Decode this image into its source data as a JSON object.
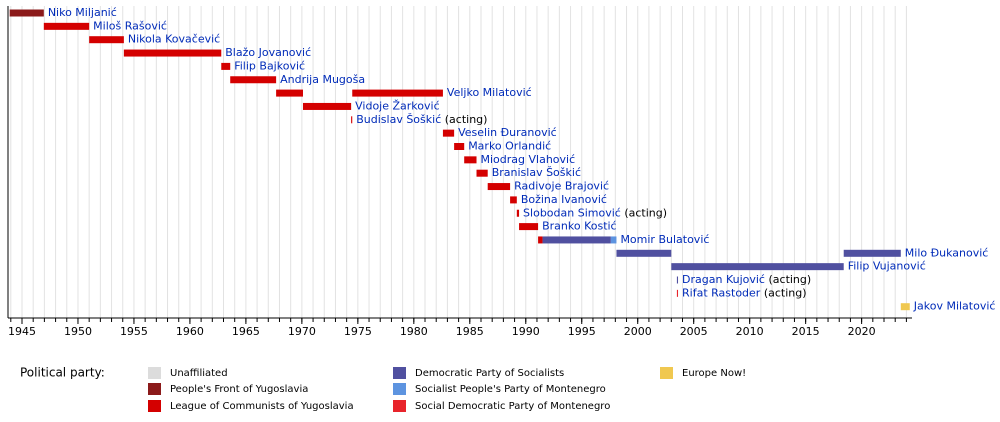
{
  "chart_data": {
    "type": "timeline",
    "xlim": [
      1943.75,
      2024.5
    ],
    "xticks": [
      1945,
      1950,
      1955,
      1960,
      1965,
      1970,
      1975,
      1980,
      1985,
      1990,
      1995,
      2000,
      2005,
      2010,
      2015,
      2020
    ],
    "minor_xticks": [
      1944,
      1945,
      1946,
      1947,
      1948,
      1949,
      1950,
      1951,
      1952,
      1953,
      1954,
      1955,
      1956,
      1957,
      1958,
      1959,
      1960,
      1961,
      1962,
      1963,
      1964,
      1965,
      1966,
      1967,
      1968,
      1969,
      1970,
      1971,
      1972,
      1973,
      1974,
      1975,
      1976,
      1977,
      1978,
      1979,
      1980,
      1981,
      1982,
      1983,
      1984,
      1985,
      1986,
      1987,
      1988,
      1989,
      1990,
      1991,
      1992,
      1993,
      1994,
      1995,
      1996,
      1997,
      1998,
      1999,
      2000,
      2001,
      2002,
      2003,
      2004,
      2005,
      2006,
      2007,
      2008,
      2009,
      2010,
      2011,
      2012,
      2013,
      2014,
      2015,
      2016,
      2017,
      2018,
      2019,
      2020,
      2021,
      2022,
      2023,
      2024
    ],
    "grid": true,
    "legend_title": "Political party:",
    "parties": [
      {
        "name": "Unaffiliated",
        "color": "#dcdcdc"
      },
      {
        "name": "People's Front of Yugoslavia",
        "color": "#8b1a1a"
      },
      {
        "name": "League of Communists of Yugoslavia",
        "color": "#d40000"
      },
      {
        "name": "Democratic Party of Socialists",
        "color": "#5050a0"
      },
      {
        "name": "Socialist People's Party of Montenegro",
        "color": "#5d94e0"
      },
      {
        "name": "Social Democratic Party of Montenegro",
        "color": "#e8242b"
      },
      {
        "name": "Europe Now!",
        "color": "#f0c850"
      }
    ],
    "rows": [
      {
        "label": "Niko Miljanić",
        "bars": [
          {
            "start": 1943.9,
            "end": 1946.95,
            "party": 1
          }
        ]
      },
      {
        "label": "Miloš Rašović",
        "bars": [
          {
            "start": 1946.95,
            "end": 1951,
            "party": 2
          }
        ]
      },
      {
        "label": "Nikola Kovačević",
        "bars": [
          {
            "start": 1951,
            "end": 1954.1,
            "party": 2
          }
        ]
      },
      {
        "label": "Blažo Jovanović",
        "bars": [
          {
            "start": 1954.1,
            "end": 1962.8,
            "party": 2
          }
        ]
      },
      {
        "label": "Filip Bajković",
        "bars": [
          {
            "start": 1962.8,
            "end": 1963.6,
            "party": 2
          }
        ]
      },
      {
        "label": "Andrija Mugoša",
        "bars": [
          {
            "start": 1963.6,
            "end": 1967.7,
            "party": 2
          }
        ]
      },
      {
        "label": "Veljko Milatović",
        "bars": [
          {
            "start": 1967.7,
            "end": 1970.1,
            "party": 2
          },
          {
            "start": 1974.5,
            "end": 1982.6,
            "party": 2
          }
        ]
      },
      {
        "label": "Vidoje Žarković",
        "bars": [
          {
            "start": 1970.1,
            "end": 1974.4,
            "party": 2
          }
        ]
      },
      {
        "label": "Budislav Šoškić",
        "note": "(acting)",
        "bars": [
          {
            "start": 1974.4,
            "end": 1974.5,
            "party": 2
          }
        ]
      },
      {
        "label": "Veselin Đuranović",
        "bars": [
          {
            "start": 1982.6,
            "end": 1983.6,
            "party": 2
          }
        ]
      },
      {
        "label": "Marko Orlandić",
        "bars": [
          {
            "start": 1983.6,
            "end": 1984.5,
            "party": 2
          }
        ]
      },
      {
        "label": "Miodrag Vlahović",
        "bars": [
          {
            "start": 1984.5,
            "end": 1985.6,
            "party": 2
          }
        ]
      },
      {
        "label": "Branislav Šoškić",
        "bars": [
          {
            "start": 1985.6,
            "end": 1986.6,
            "party": 2
          }
        ]
      },
      {
        "label": "Radivoje Brajović",
        "bars": [
          {
            "start": 1986.6,
            "end": 1988.6,
            "party": 2
          }
        ]
      },
      {
        "label": "Božina Ivanović",
        "bars": [
          {
            "start": 1988.6,
            "end": 1989.2,
            "party": 2
          }
        ]
      },
      {
        "label": "Slobodan Simović",
        "note": "(acting)",
        "bars": [
          {
            "start": 1989.2,
            "end": 1989.4,
            "party": 2
          }
        ]
      },
      {
        "label": "Branko Kostić",
        "bars": [
          {
            "start": 1989.4,
            "end": 1991.1,
            "party": 2
          }
        ]
      },
      {
        "label": "Momir Bulatović",
        "bars": [
          {
            "start": 1991.1,
            "end": 1991.5,
            "party": 2
          },
          {
            "start": 1991.5,
            "end": 1997.6,
            "party": 3
          },
          {
            "start": 1997.6,
            "end": 1998.1,
            "party": 4
          }
        ]
      },
      {
        "label": "Milo Đukanović",
        "bars": [
          {
            "start": 1998.1,
            "end": 2003,
            "party": 3
          },
          {
            "start": 2018.4,
            "end": 2023.5,
            "party": 3
          }
        ]
      },
      {
        "label": "Filip Vujanović",
        "bars": [
          {
            "start": 2003,
            "end": 2018.4,
            "party": 3
          }
        ]
      },
      {
        "label": "Dragan Kujović",
        "note": "(acting)",
        "bars": [
          {
            "start": 2003.5,
            "end": 2003.6,
            "party": 3
          }
        ]
      },
      {
        "label": "Rifat Rastoder",
        "note": "(acting)",
        "bars": [
          {
            "start": 2003.5,
            "end": 2003.6,
            "party": 5
          }
        ]
      },
      {
        "label": "Jakov Milatović",
        "bars": [
          {
            "start": 2023.5,
            "end": 2024.3,
            "party": 6
          }
        ]
      }
    ]
  }
}
